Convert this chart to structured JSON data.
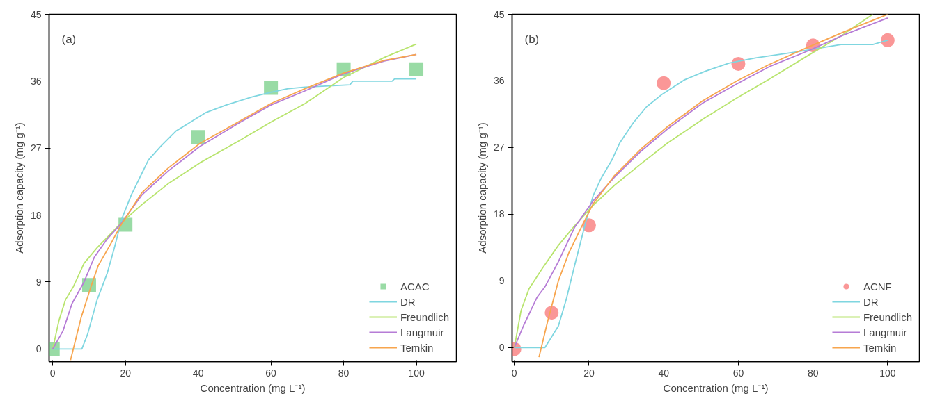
{
  "chart_data": [
    {
      "type": "line",
      "xlabel": "Concentration (mg L⁻¹)",
      "ylabel": "Adsorption capacity (mg g⁻¹)",
      "annotations": [
        "(a)"
      ],
      "xlim": [
        -1,
        111
      ],
      "ylim": [
        -1.7,
        45
      ],
      "xticks": [
        0,
        20,
        40,
        60,
        80,
        100
      ],
      "yticks": [
        0,
        9,
        18,
        27,
        36,
        45
      ],
      "grid": false,
      "legend": "bottom right",
      "series": [
        {
          "name": "ACAC",
          "type": "scatter",
          "marker": "square",
          "color": "#99dba5",
          "x": [
            0,
            10,
            20,
            40,
            60,
            80,
            100
          ],
          "values": [
            0,
            8.6,
            16.7,
            28.5,
            35.1,
            37.6,
            37.6
          ]
        },
        {
          "name": "DR",
          "color": "#7fd6e0",
          "x": [
            0,
            8,
            9.6,
            12.2,
            15,
            16.9,
            19,
            21.6,
            24.5,
            26.3,
            29.6,
            33.9,
            38.2,
            42.2,
            47.7,
            54.9,
            60,
            64.7,
            69.4,
            81.7,
            82.5,
            93.3,
            94,
            100
          ],
          "values": [
            0,
            0,
            2,
            6.6,
            10.2,
            13.5,
            17.5,
            20.7,
            23.6,
            25.4,
            27.2,
            29.3,
            30.6,
            31.8,
            32.8,
            33.9,
            34.5,
            35.0,
            35.2,
            35.5,
            36.0,
            36.0,
            36.3,
            36.3
          ]
        },
        {
          "name": "Freundlich",
          "color": "#b8e46e",
          "x": [
            0,
            1.7,
            3.5,
            5.7,
            8.6,
            12.2,
            15,
            18.7,
            24.5,
            31.7,
            40.4,
            51.3,
            60,
            69.4,
            80,
            91.2,
            100
          ],
          "values": [
            0,
            3.8,
            6.6,
            8.4,
            11.5,
            13.6,
            15.0,
            16.9,
            19.4,
            22.2,
            25.0,
            28.0,
            30.5,
            33.0,
            36.5,
            39.2,
            41.0
          ]
        },
        {
          "name": "Langmuir",
          "color": "#b67cd6",
          "x": [
            0,
            2.8,
            5.3,
            8.6,
            11.4,
            15,
            18.7,
            24.5,
            31.7,
            40.4,
            51.3,
            60,
            69.4,
            80,
            91.2,
            100
          ],
          "values": [
            0,
            2.4,
            6.1,
            9.0,
            12.3,
            14.8,
            16.8,
            20.7,
            23.9,
            27.2,
            30.4,
            32.8,
            34.7,
            37.0,
            38.7,
            39.6
          ]
        },
        {
          "name": "Temkin",
          "color": "#f7a54e",
          "x": [
            4.9,
            7.8,
            10.4,
            12.5,
            15.8,
            18.7,
            24.5,
            31.7,
            40.4,
            51.3,
            60,
            69.4,
            80,
            91.2,
            100
          ],
          "values": [
            -1.5,
            4.2,
            8.2,
            11.2,
            14.0,
            16.6,
            21.0,
            24.3,
            27.6,
            30.6,
            33.0,
            35.0,
            37.1,
            38.8,
            39.6
          ]
        }
      ]
    },
    {
      "type": "line",
      "xlabel": "Concentration (mg L⁻¹)",
      "ylabel": "Adsorption capacity (mg g⁻¹)",
      "annotations": [
        "(b)"
      ],
      "xlim": [
        -0.6,
        108.5
      ],
      "ylim": [
        -1.9,
        45
      ],
      "xticks": [
        0,
        20,
        40,
        60,
        80,
        100
      ],
      "yticks": [
        0,
        9,
        18,
        27,
        36,
        45
      ],
      "grid": false,
      "legend": "bottom right",
      "series": [
        {
          "name": "ACNF",
          "type": "scatter",
          "marker": "circle",
          "color": "#fa9797",
          "x": [
            0,
            10,
            20,
            40,
            60,
            80,
            100
          ],
          "values": [
            -0.2,
            4.7,
            16.5,
            35.7,
            38.3,
            40.8,
            41.5
          ]
        },
        {
          "name": "DR",
          "color": "#7fd6e0",
          "x": [
            0,
            8.2,
            11.8,
            13.9,
            16.1,
            19,
            21.1,
            23.2,
            26.1,
            28.2,
            31.8,
            35.4,
            39.6,
            45.4,
            51.1,
            57.5,
            64.6,
            75.4,
            87.5,
            96,
            100
          ],
          "values": [
            0,
            0,
            2.9,
            6.5,
            11.0,
            16.7,
            20.5,
            22.8,
            25.3,
            27.6,
            30.3,
            32.5,
            34.2,
            36.1,
            37.3,
            38.4,
            39.1,
            39.9,
            40.9,
            40.9,
            41.5
          ]
        },
        {
          "name": "Freundlich",
          "color": "#b8e46e",
          "x": [
            0,
            1.8,
            3.9,
            7.5,
            11.8,
            16.1,
            21.1,
            26.8,
            33.9,
            41,
            50.4,
            59.6,
            68.2,
            78.9,
            88.2,
            96
          ],
          "values": [
            0,
            5.0,
            7.9,
            10.7,
            13.8,
            16.4,
            19.2,
            21.9,
            24.8,
            27.6,
            30.8,
            33.7,
            36.2,
            39.5,
            42.3,
            45
          ]
        },
        {
          "name": "Langmuir",
          "color": "#b67cd6",
          "x": [
            0,
            2.5,
            6.1,
            8.2,
            11.8,
            16.1,
            21.1,
            26.8,
            33.9,
            41,
            50.4,
            59.6,
            68.2,
            78.9,
            88.2,
            100
          ],
          "values": [
            0,
            3.0,
            6.8,
            8.2,
            11.6,
            16.2,
            19.8,
            23.0,
            26.5,
            29.5,
            33.0,
            35.6,
            37.9,
            40.1,
            42.2,
            44.5
          ]
        },
        {
          "name": "Temkin",
          "color": "#f7a54e",
          "x": [
            6.6,
            8.9,
            11.8,
            14.6,
            17.5,
            21.1,
            26.8,
            33.9,
            41,
            50.4,
            59.6,
            68.2,
            78.9,
            88.2,
            100
          ],
          "values": [
            -1.3,
            3.5,
            9.0,
            12.8,
            15.8,
            19.4,
            23.2,
            26.8,
            29.8,
            33.3,
            36.0,
            38.2,
            40.6,
            42.6,
            45.0
          ]
        }
      ]
    }
  ]
}
